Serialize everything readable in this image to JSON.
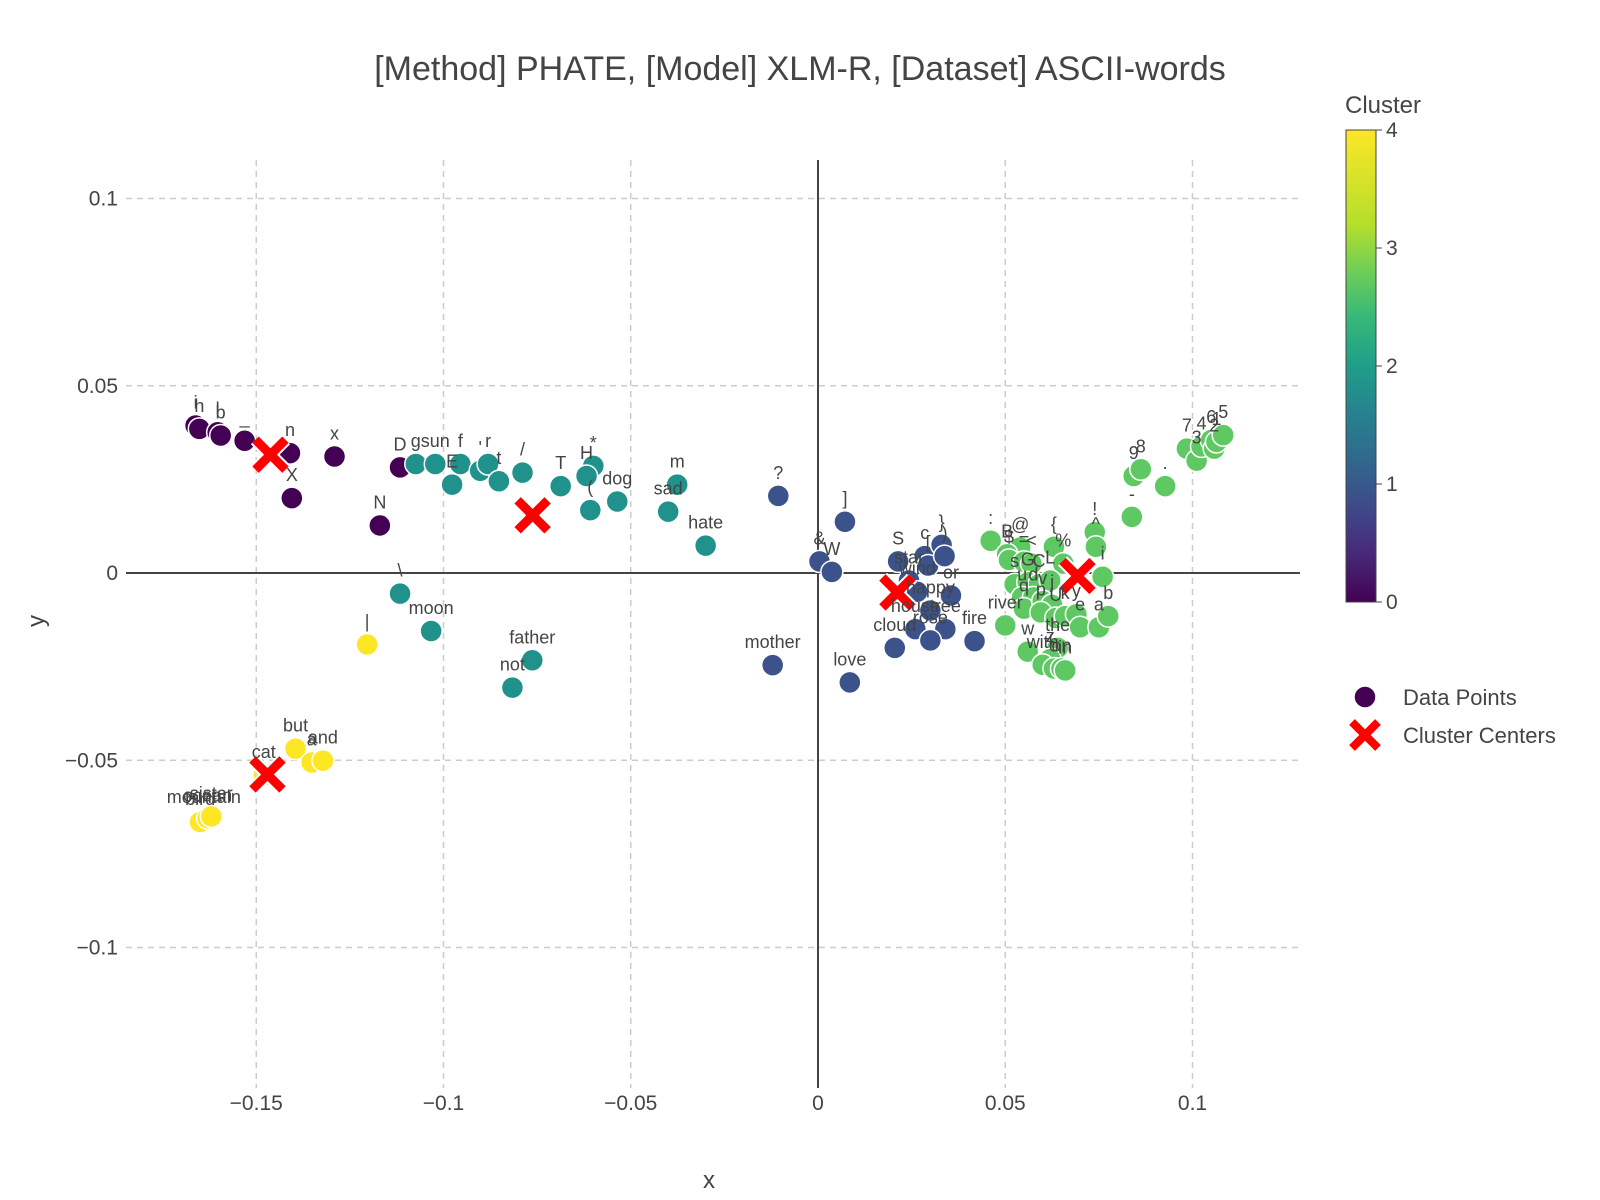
{
  "chart_data": {
    "type": "scatter",
    "title": "[Method] PHATE, [Model] XLM-R, [Dataset] ASCII-words",
    "xlabel": "x",
    "ylabel": "y",
    "xlim": [
      -0.1495,
      0.128
    ],
    "ylim": [
      -0.1367,
      0.1112
    ],
    "xticks": [
      {
        "v": -0.15,
        "label": "−0.15"
      },
      {
        "v": -0.1,
        "label": "−0.1"
      },
      {
        "v": -0.05,
        "label": "−0.05"
      },
      {
        "v": 0,
        "label": "0"
      },
      {
        "v": 0.05,
        "label": "0.05"
      },
      {
        "v": 0.1,
        "label": "0.1"
      }
    ],
    "yticks": [
      {
        "v": 0.1,
        "label": "0.1"
      },
      {
        "v": 0.05,
        "label": "0.05"
      },
      {
        "v": 0,
        "label": "0"
      },
      {
        "v": -0.05,
        "label": "−0.05"
      },
      {
        "v": -0.1,
        "label": "−0.1"
      }
    ],
    "grid": true,
    "colorbar": {
      "title": "Cluster",
      "min": 0,
      "max": 4,
      "ticks": [
        "0",
        "1",
        "2",
        "3",
        "4"
      ],
      "colorscale": "viridis"
    },
    "legend": {
      "position": "right",
      "entries": [
        {
          "name": "Data Points",
          "symbol": "circle"
        },
        {
          "name": "Cluster Centers",
          "symbol": "x"
        }
      ]
    },
    "colors": {
      "c0": "#440154",
      "c1": "#3b528b",
      "c2": "#21918c",
      "c3": "#5ec962",
      "c4": "#fde725",
      "center": "#ff0000"
    },
    "centers": [
      {
        "cluster": 0,
        "x": -0.1462,
        "y": 0.0316
      },
      {
        "cluster": 1,
        "x": 0.0212,
        "y": -0.0052
      },
      {
        "cluster": 2,
        "x": -0.0762,
        "y": 0.0154
      },
      {
        "cluster": 3,
        "x": 0.0693,
        "y": -0.0008
      },
      {
        "cluster": 4,
        "x": -0.147,
        "y": -0.0538
      }
    ],
    "points": [
      {
        "label": "i",
        "x": -0.1662,
        "y": 0.0394,
        "cluster": 0
      },
      {
        "label": "h",
        "x": -0.1652,
        "y": 0.0385,
        "cluster": 0
      },
      {
        "label": "l",
        "x": -0.1603,
        "y": 0.0376,
        "cluster": 0
      },
      {
        "label": "b",
        "x": -0.1595,
        "y": 0.0367,
        "cluster": 0
      },
      {
        "label": "_",
        "x": -0.1531,
        "y": 0.0353,
        "cluster": 0
      },
      {
        "label": "n",
        "x": -0.141,
        "y": 0.032,
        "cluster": 0
      },
      {
        "label": "x",
        "x": -0.1291,
        "y": 0.0311,
        "cluster": 0
      },
      {
        "label": "X",
        "x": -0.1405,
        "y": 0.02,
        "cluster": 0
      },
      {
        "label": "N",
        "x": -0.117,
        "y": 0.0127,
        "cluster": 0
      },
      {
        "label": "D",
        "x": -0.1116,
        "y": 0.0282,
        "cluster": 0
      },
      {
        "label": "?",
        "x": -0.0106,
        "y": 0.0206,
        "cluster": 1
      },
      {
        "label": "]",
        "x": 0.0072,
        "y": 0.0137,
        "cluster": 1
      },
      {
        "label": "&",
        "x": 0.0004,
        "y": 0.0031,
        "cluster": 1
      },
      {
        "label": "W",
        "x": 0.0037,
        "y": 0.0003,
        "cluster": 1
      },
      {
        "label": "S",
        "x": 0.0214,
        "y": 0.0031,
        "cluster": 1
      },
      {
        "label": "star",
        "x": 0.0243,
        "y": -0.002,
        "cluster": 1
      },
      {
        "label": "c",
        "x": 0.0285,
        "y": 0.0045,
        "cluster": 1
      },
      {
        "label": "[",
        "x": 0.0294,
        "y": 0.002,
        "cluster": 1
      },
      {
        "label": "}",
        "x": 0.033,
        "y": 0.0075,
        "cluster": 1
      },
      {
        "label": ")",
        "x": 0.0338,
        "y": 0.0045,
        "cluster": 1
      },
      {
        "label": "wind",
        "x": 0.0265,
        "y": -0.005,
        "cluster": 1
      },
      {
        "label": "or",
        "x": 0.0355,
        "y": -0.006,
        "cluster": 1
      },
      {
        "label": "happy",
        "x": 0.03,
        "y": -0.01,
        "cluster": 1
      },
      {
        "label": "tree",
        "x": 0.034,
        "y": -0.015,
        "cluster": 1
      },
      {
        "label": "house",
        "x": 0.026,
        "y": -0.015,
        "cluster": 1
      },
      {
        "label": "rose",
        "x": 0.03,
        "y": -0.018,
        "cluster": 1
      },
      {
        "label": "cloud",
        "x": 0.0205,
        "y": -0.02,
        "cluster": 1
      },
      {
        "label": "fire",
        "x": 0.0418,
        "y": -0.0182,
        "cluster": 1
      },
      {
        "label": "mother",
        "x": -0.0121,
        "y": -0.0246,
        "cluster": 1
      },
      {
        "label": "love",
        "x": 0.0085,
        "y": -0.0292,
        "cluster": 1
      },
      {
        "label": "g",
        "x": -0.1074,
        "y": 0.0291,
        "cluster": 2
      },
      {
        "label": "sun",
        "x": -0.1022,
        "y": 0.0291,
        "cluster": 2
      },
      {
        "label": "f",
        "x": -0.0955,
        "y": 0.0291,
        "cluster": 2
      },
      {
        "label": "E",
        "x": -0.0977,
        "y": 0.0236,
        "cluster": 2
      },
      {
        "label": "'",
        "x": -0.0902,
        "y": 0.0273,
        "cluster": 2
      },
      {
        "label": "r",
        "x": -0.0881,
        "y": 0.0291,
        "cluster": 2
      },
      {
        "label": "t",
        "x": -0.0852,
        "y": 0.0245,
        "cluster": 2
      },
      {
        "label": "/",
        "x": -0.0789,
        "y": 0.0268,
        "cluster": 2
      },
      {
        "label": "T",
        "x": -0.0687,
        "y": 0.0232,
        "cluster": 2
      },
      {
        "label": "*",
        "x": -0.06,
        "y": 0.0286,
        "cluster": 2
      },
      {
        "label": "H",
        "x": -0.0618,
        "y": 0.0259,
        "cluster": 2
      },
      {
        "label": "(",
        "x": -0.0608,
        "y": 0.0168,
        "cluster": 2
      },
      {
        "label": "dog",
        "x": -0.0536,
        "y": 0.0191,
        "cluster": 2
      },
      {
        "label": "m",
        "x": -0.0376,
        "y": 0.0236,
        "cluster": 2
      },
      {
        "label": "sad",
        "x": -0.04,
        "y": 0.0164,
        "cluster": 2
      },
      {
        "label": "hate",
        "x": -0.03,
        "y": 0.0073,
        "cluster": 2
      },
      {
        "label": "\\",
        "x": -0.1116,
        "y": -0.0055,
        "cluster": 2
      },
      {
        "label": "moon",
        "x": -0.1033,
        "y": -0.0155,
        "cluster": 2
      },
      {
        "label": "father",
        "x": -0.0763,
        "y": -0.0233,
        "cluster": 2
      },
      {
        "label": "not",
        "x": -0.0816,
        "y": -0.0306,
        "cluster": 2
      },
      {
        "label": "9",
        "x": 0.0843,
        "y": 0.0259,
        "cluster": 3
      },
      {
        "label": "8",
        "x": 0.0862,
        "y": 0.0277,
        "cluster": 3
      },
      {
        "label": ".",
        "x": 0.0927,
        "y": 0.0232,
        "cluster": 3
      },
      {
        "label": "-",
        "x": 0.0838,
        "y": 0.015,
        "cluster": 3
      },
      {
        "label": "7",
        "x": 0.0985,
        "y": 0.0332,
        "cluster": 3
      },
      {
        "label": "3",
        "x": 0.1011,
        "y": 0.03,
        "cluster": 3
      },
      {
        "label": "4",
        "x": 0.1024,
        "y": 0.0338,
        "cluster": 3
      },
      {
        "label": "6",
        "x": 0.105,
        "y": 0.0355,
        "cluster": 3
      },
      {
        "label": "2",
        "x": 0.1058,
        "y": 0.0332,
        "cluster": 3
      },
      {
        "label": "1",
        "x": 0.1064,
        "y": 0.035,
        "cluster": 3
      },
      {
        "label": "5",
        "x": 0.1082,
        "y": 0.0368,
        "cluster": 3
      },
      {
        "label": "!",
        "x": 0.0739,
        "y": 0.0109,
        "cluster": 3
      },
      {
        "label": "^",
        "x": 0.0742,
        "y": 0.007,
        "cluster": 3
      },
      {
        "label": "i",
        "x": 0.076,
        "y": -0.001,
        "cluster": 3
      },
      {
        "label": ":",
        "x": 0.0461,
        "y": 0.0086,
        "cluster": 3
      },
      {
        "label": "@",
        "x": 0.054,
        "y": 0.0068,
        "cluster": 3
      },
      {
        "label": "B",
        "x": 0.0505,
        "y": 0.005,
        "cluster": 3
      },
      {
        "label": "$",
        "x": 0.051,
        "y": 0.0035,
        "cluster": 3
      },
      {
        "label": "=",
        "x": 0.055,
        "y": 0.003,
        "cluster": 3
      },
      {
        "label": "<",
        "x": 0.057,
        "y": 0.0025,
        "cluster": 3
      },
      {
        "label": "{",
        "x": 0.063,
        "y": 0.007,
        "cluster": 3
      },
      {
        "label": "%",
        "x": 0.0655,
        "y": 0.0025,
        "cluster": 3
      },
      {
        "label": "s",
        "x": 0.0525,
        "y": -0.003,
        "cluster": 3
      },
      {
        "label": "G",
        "x": 0.056,
        "y": -0.0025,
        "cluster": 3
      },
      {
        "label": "C",
        "x": 0.059,
        "y": -0.003,
        "cluster": 3
      },
      {
        "label": "L",
        "x": 0.062,
        "y": -0.002,
        "cluster": 3
      },
      {
        "label": "u",
        "x": 0.0545,
        "y": -0.0065,
        "cluster": 3
      },
      {
        "label": "d",
        "x": 0.0575,
        "y": -0.0065,
        "cluster": 3
      },
      {
        "label": "q",
        "x": 0.055,
        "y": -0.0095,
        "cluster": 3
      },
      {
        "label": "v",
        "x": 0.06,
        "y": -0.0075,
        "cluster": 3
      },
      {
        "label": "j",
        "x": 0.0625,
        "y": -0.0085,
        "cluster": 3
      },
      {
        "label": "p",
        "x": 0.0595,
        "y": -0.0105,
        "cluster": 3
      },
      {
        "label": "river",
        "x": 0.05,
        "y": -0.014,
        "cluster": 3
      },
      {
        "label": "U",
        "x": 0.0635,
        "y": -0.012,
        "cluster": 3
      },
      {
        "label": "k",
        "x": 0.066,
        "y": -0.0115,
        "cluster": 3
      },
      {
        "label": "y",
        "x": 0.069,
        "y": -0.011,
        "cluster": 3
      },
      {
        "label": "e",
        "x": 0.07,
        "y": -0.0145,
        "cluster": 3
      },
      {
        "label": "a",
        "x": 0.075,
        "y": -0.0145,
        "cluster": 3
      },
      {
        "label": "b",
        "x": 0.0775,
        "y": -0.0115,
        "cluster": 3
      },
      {
        "label": "w",
        "x": 0.056,
        "y": -0.021,
        "cluster": 3
      },
      {
        "label": "the",
        "x": 0.064,
        "y": -0.02,
        "cluster": 3
      },
      {
        "label": "z",
        "x": 0.062,
        "y": -0.023,
        "cluster": 3
      },
      {
        "label": "with",
        "x": 0.06,
        "y": -0.0245,
        "cluster": 3
      },
      {
        "label": "o",
        "x": 0.063,
        "y": -0.0255,
        "cluster": 3
      },
      {
        "label": "on",
        "x": 0.065,
        "y": -0.0255,
        "cluster": 3
      },
      {
        "label": "in",
        "x": 0.066,
        "y": -0.026,
        "cluster": 3
      },
      {
        "label": "|",
        "x": -0.1204,
        "y": -0.0191,
        "cluster": 4
      },
      {
        "label": "but",
        "x": -0.1395,
        "y": -0.0469,
        "cluster": 4
      },
      {
        "label": "a",
        "x": -0.1352,
        "y": -0.0506,
        "cluster": 4
      },
      {
        "label": "and",
        "x": -0.1322,
        "y": -0.0501,
        "cluster": 4
      },
      {
        "label": "cat",
        "x": -0.148,
        "y": -0.054,
        "cluster": 4
      },
      {
        "label": "mountain",
        "x": -0.164,
        "y": -0.066,
        "cluster": 4
      },
      {
        "label": "bird",
        "x": -0.165,
        "y": -0.0665,
        "cluster": 4
      },
      {
        "label": "ocean",
        "x": -0.163,
        "y": -0.0655,
        "cluster": 4
      },
      {
        "label": "sister",
        "x": -0.162,
        "y": -0.065,
        "cluster": 4
      }
    ]
  }
}
